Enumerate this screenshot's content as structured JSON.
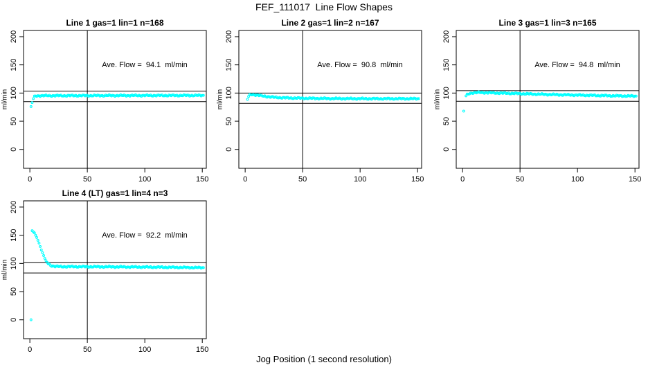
{
  "figure": {
    "title": "FEF_111017  Line Flow Shapes",
    "xlabel": "Jog Position (1 second resolution)",
    "ylabel": "ml/min",
    "background_color": "#ffffff",
    "axis_color": "#000000",
    "marker_color": "#00FFFF"
  },
  "series_encoding": "Each panel draws one open-circle marker at every integer jog position from the first to last anchor x; y values are linearly interpolated between anchor points [x, y_ml_per_min]; hlines_y are reference lines at average flow +/-10%; vline_x is a vertical reference line; gaps list x-intervals with no samples.",
  "chart_data": [
    {
      "type": "scatter",
      "title": "Line 1 gas=1 lin=1 n=168",
      "annotation": "Ave. Flow =  94.1  ml/min",
      "ave_flow_ml_min": 94.1,
      "n": 168,
      "xlim": [
        -5.5,
        153.5
      ],
      "ylim": [
        -33.5,
        211
      ],
      "x_ticks": [
        0,
        50,
        100,
        150
      ],
      "y_ticks": [
        0,
        50,
        100,
        150,
        200
      ],
      "vline_x": 50,
      "hlines_y": [
        103.5,
        84.7
      ],
      "annotation_xy": [
        100,
        150
      ],
      "gaps": [],
      "anchors": [
        [
          1,
          76
        ],
        [
          2,
          83
        ],
        [
          3,
          90
        ],
        [
          4,
          93.5
        ],
        [
          5,
          94.8
        ],
        [
          8,
          95.3
        ],
        [
          30,
          95.4
        ],
        [
          80,
          95.6
        ],
        [
          151,
          95.8
        ]
      ]
    },
    {
      "type": "scatter",
      "title": "Line 2 gas=1 lin=2 n=167",
      "annotation": "Ave. Flow =  90.8  ml/min",
      "ave_flow_ml_min": 90.8,
      "n": 167,
      "xlim": [
        -5.5,
        153.5
      ],
      "ylim": [
        -33.5,
        211
      ],
      "x_ticks": [
        0,
        50,
        100,
        150
      ],
      "y_ticks": [
        0,
        50,
        100,
        150,
        200
      ],
      "vline_x": 50,
      "hlines_y": [
        99.9,
        81.7
      ],
      "annotation_xy": [
        100,
        150
      ],
      "gaps": [],
      "anchors": [
        [
          2,
          89
        ],
        [
          3,
          94
        ],
        [
          4,
          96.5
        ],
        [
          6,
          97.5
        ],
        [
          9,
          96.8
        ],
        [
          13,
          95.5
        ],
        [
          18,
          94
        ],
        [
          25,
          92.5
        ],
        [
          35,
          91.5
        ],
        [
          50,
          90.8
        ],
        [
          75,
          90.3
        ],
        [
          110,
          90
        ],
        [
          151,
          90
        ]
      ]
    },
    {
      "type": "scatter",
      "title": "Line 3 gas=1 lin=3 n=165",
      "annotation": "Ave. Flow =  94.8  ml/min",
      "ave_flow_ml_min": 94.8,
      "n": 165,
      "xlim": [
        -5.5,
        153.5
      ],
      "ylim": [
        -33.5,
        211
      ],
      "x_ticks": [
        0,
        50,
        100,
        150
      ],
      "y_ticks": [
        0,
        50,
        100,
        150,
        200
      ],
      "vline_x": 50,
      "hlines_y": [
        104.3,
        85.3
      ],
      "annotation_xy": [
        100,
        150
      ],
      "gaps": [
        [
          1,
          3
        ]
      ],
      "anchors": [
        [
          1,
          68
        ],
        [
          3,
          95
        ],
        [
          4,
          97
        ],
        [
          6,
          99.3
        ],
        [
          9,
          100.5
        ],
        [
          15,
          101
        ],
        [
          25,
          100.4
        ],
        [
          40,
          99.6
        ],
        [
          60,
          98.3
        ],
        [
          85,
          97
        ],
        [
          110,
          96
        ],
        [
          130,
          95.2
        ],
        [
          151,
          94.5
        ]
      ]
    },
    {
      "type": "scatter",
      "title": "Line 4 (LT) gas=1 lin=4 n=3",
      "annotation": "Ave. Flow =  92.2  ml/min",
      "ave_flow_ml_min": 92.2,
      "n": 3,
      "xlim": [
        -5.5,
        153.5
      ],
      "ylim": [
        -33.5,
        211
      ],
      "x_ticks": [
        0,
        50,
        100,
        150
      ],
      "y_ticks": [
        0,
        50,
        100,
        150,
        200
      ],
      "vline_x": 50,
      "hlines_y": [
        101.4,
        83.0
      ],
      "annotation_xy": [
        100,
        150
      ],
      "gaps": [],
      "anchors": [
        [
          1,
          0
        ],
        [
          2,
          158
        ],
        [
          3,
          156
        ],
        [
          4,
          153
        ],
        [
          5,
          150
        ],
        [
          6,
          146
        ],
        [
          7,
          141
        ],
        [
          8,
          136
        ],
        [
          9,
          130
        ],
        [
          10,
          124
        ],
        [
          11,
          119
        ],
        [
          12,
          114
        ],
        [
          13,
          109
        ],
        [
          14,
          105
        ],
        [
          15,
          102
        ],
        [
          16,
          99.5
        ],
        [
          17,
          98
        ],
        [
          18,
          96.8
        ],
        [
          19,
          96
        ],
        [
          20,
          95.4
        ],
        [
          22,
          94.8
        ],
        [
          26,
          94.4
        ],
        [
          40,
          94.3
        ],
        [
          70,
          94
        ],
        [
          100,
          93.6
        ],
        [
          130,
          93
        ],
        [
          151,
          92.5
        ]
      ]
    }
  ]
}
